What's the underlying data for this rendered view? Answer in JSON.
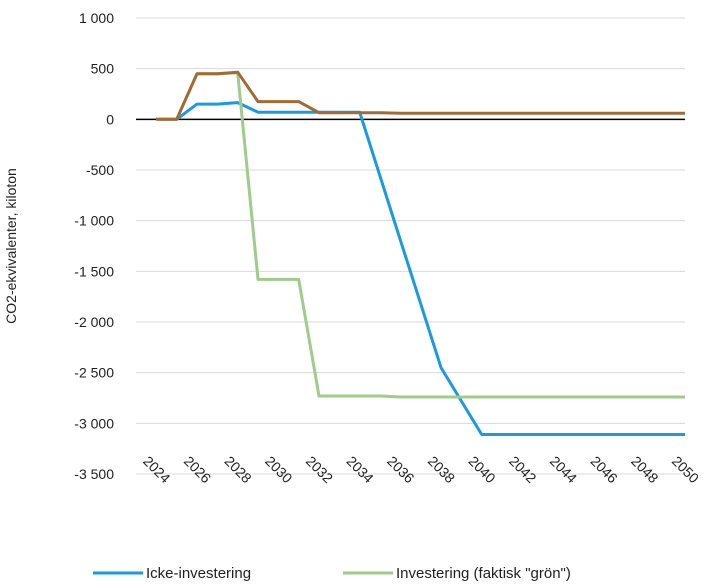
{
  "chart_data": {
    "type": "line",
    "title": "",
    "ylabel": "CO2-ekvivalenter, kiloton",
    "xlabel": "",
    "ylim": [
      -3500,
      1000
    ],
    "yticks": [
      1000,
      500,
      0,
      -500,
      -1000,
      -1500,
      -2000,
      -2500,
      -3000,
      -3500
    ],
    "ytick_labels": [
      "1 000",
      "500",
      "0",
      "-500",
      "-1 000",
      "-1 500",
      "-2 000",
      "-2 500",
      "-3 000",
      "-3 500"
    ],
    "xlim": [
      2023,
      2050
    ],
    "xticks": [
      2024,
      2026,
      2028,
      2030,
      2032,
      2034,
      2036,
      2038,
      2040,
      2042,
      2044,
      2046,
      2048,
      2050
    ],
    "xtick_labels": [
      "2024",
      "2026",
      "2028",
      "2030",
      "2032",
      "2034",
      "2036",
      "2038",
      "2040",
      "2042",
      "2044",
      "2046",
      "2048",
      "2050"
    ],
    "grid": "horizontal",
    "legend_position": "bottom",
    "x": [
      2024,
      2025,
      2026,
      2027,
      2028,
      2029,
      2030,
      2031,
      2032,
      2033,
      2034,
      2035,
      2036,
      2037,
      2038,
      2039,
      2040,
      2041,
      2042,
      2043,
      2044,
      2045,
      2046,
      2047,
      2048,
      2049,
      2050
    ],
    "series": [
      {
        "name": "Icke-investering",
        "color": "#1a9ae0",
        "values": [
          0,
          0,
          150,
          150,
          165,
          70,
          70,
          70,
          70,
          70,
          70,
          -560,
          -1190,
          -1820,
          -2450,
          -2780,
          -3110,
          -3110,
          -3110,
          -3110,
          -3110,
          -3110,
          -3110,
          -3110,
          -3110,
          -3110,
          -3110
        ]
      },
      {
        "name": "Investering (faktisk \"grön\")",
        "color": "#9fcc8a",
        "values": [
          0,
          0,
          450,
          450,
          460,
          -1580,
          -1580,
          -1580,
          -2730,
          -2730,
          -2730,
          -2730,
          -2740,
          -2740,
          -2740,
          -2740,
          -2740,
          -2740,
          -2740,
          -2740,
          -2740,
          -2740,
          -2740,
          -2740,
          -2740,
          -2740,
          -2740
        ]
      },
      {
        "name": "",
        "color": "#a36a35",
        "values": [
          0,
          0,
          450,
          450,
          465,
          175,
          175,
          175,
          65,
          65,
          65,
          65,
          60,
          60,
          60,
          60,
          60,
          60,
          60,
          60,
          60,
          60,
          60,
          60,
          60,
          60,
          60
        ]
      }
    ]
  }
}
